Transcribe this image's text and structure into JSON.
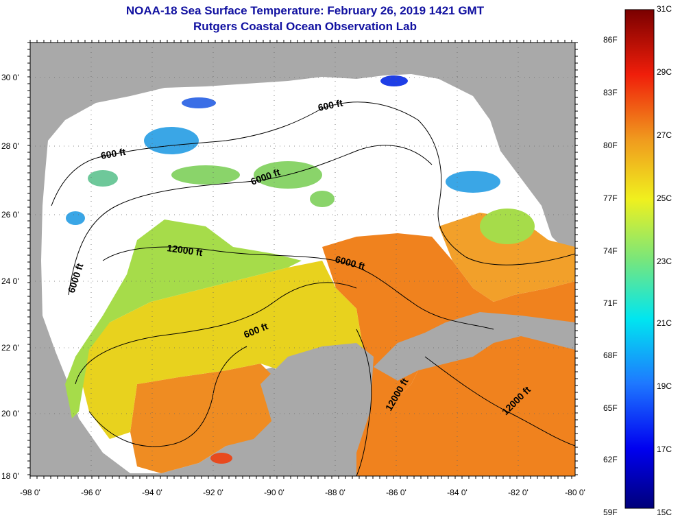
{
  "title": "NOAA-18 Sea Surface Temperature:  February 26, 2019 1421 GMT",
  "subtitle": "Rutgers Coastal Ocean Observation Lab",
  "lat_labels": [
    "30 0'",
    "28 0'",
    "26 0'",
    "24 0'",
    "22 0'",
    "20 0'",
    "18 0'"
  ],
  "lon_labels": [
    "-98 0'",
    "-96 0'",
    "-94 0'",
    "-92 0'",
    "-90 0'",
    "-88 0'",
    "-86 0'",
    "-84 0'",
    "-82 0'",
    "-80 0'"
  ],
  "contours": {
    "label_600_a": "600 ft",
    "label_600_b": "600 ft",
    "label_600_c": "600 ft",
    "label_6000_a": "6000 ft",
    "label_6000_b": "6000 ft",
    "label_6000_c": "6000 ft",
    "label_12000_a": "12000 ft",
    "label_12000_b": "12000 ft",
    "label_12000_c": "12000 ft"
  },
  "colorbar": {
    "fahrenheit": [
      "86F",
      "83F",
      "80F",
      "77F",
      "74F",
      "71F",
      "68F",
      "65F",
      "62F",
      "59F"
    ],
    "celsius": [
      "31C",
      "29C",
      "27C",
      "25C",
      "23C",
      "21C",
      "19C",
      "17C",
      "15C"
    ]
  },
  "colors": {
    "land": "#a9a9a9",
    "cloud": "#ffffff",
    "warm": "#f0821e",
    "mid": "#e8d21e",
    "cool": "#a6dc4a",
    "cold": "#3aa6e6",
    "title": "#1010a0"
  }
}
